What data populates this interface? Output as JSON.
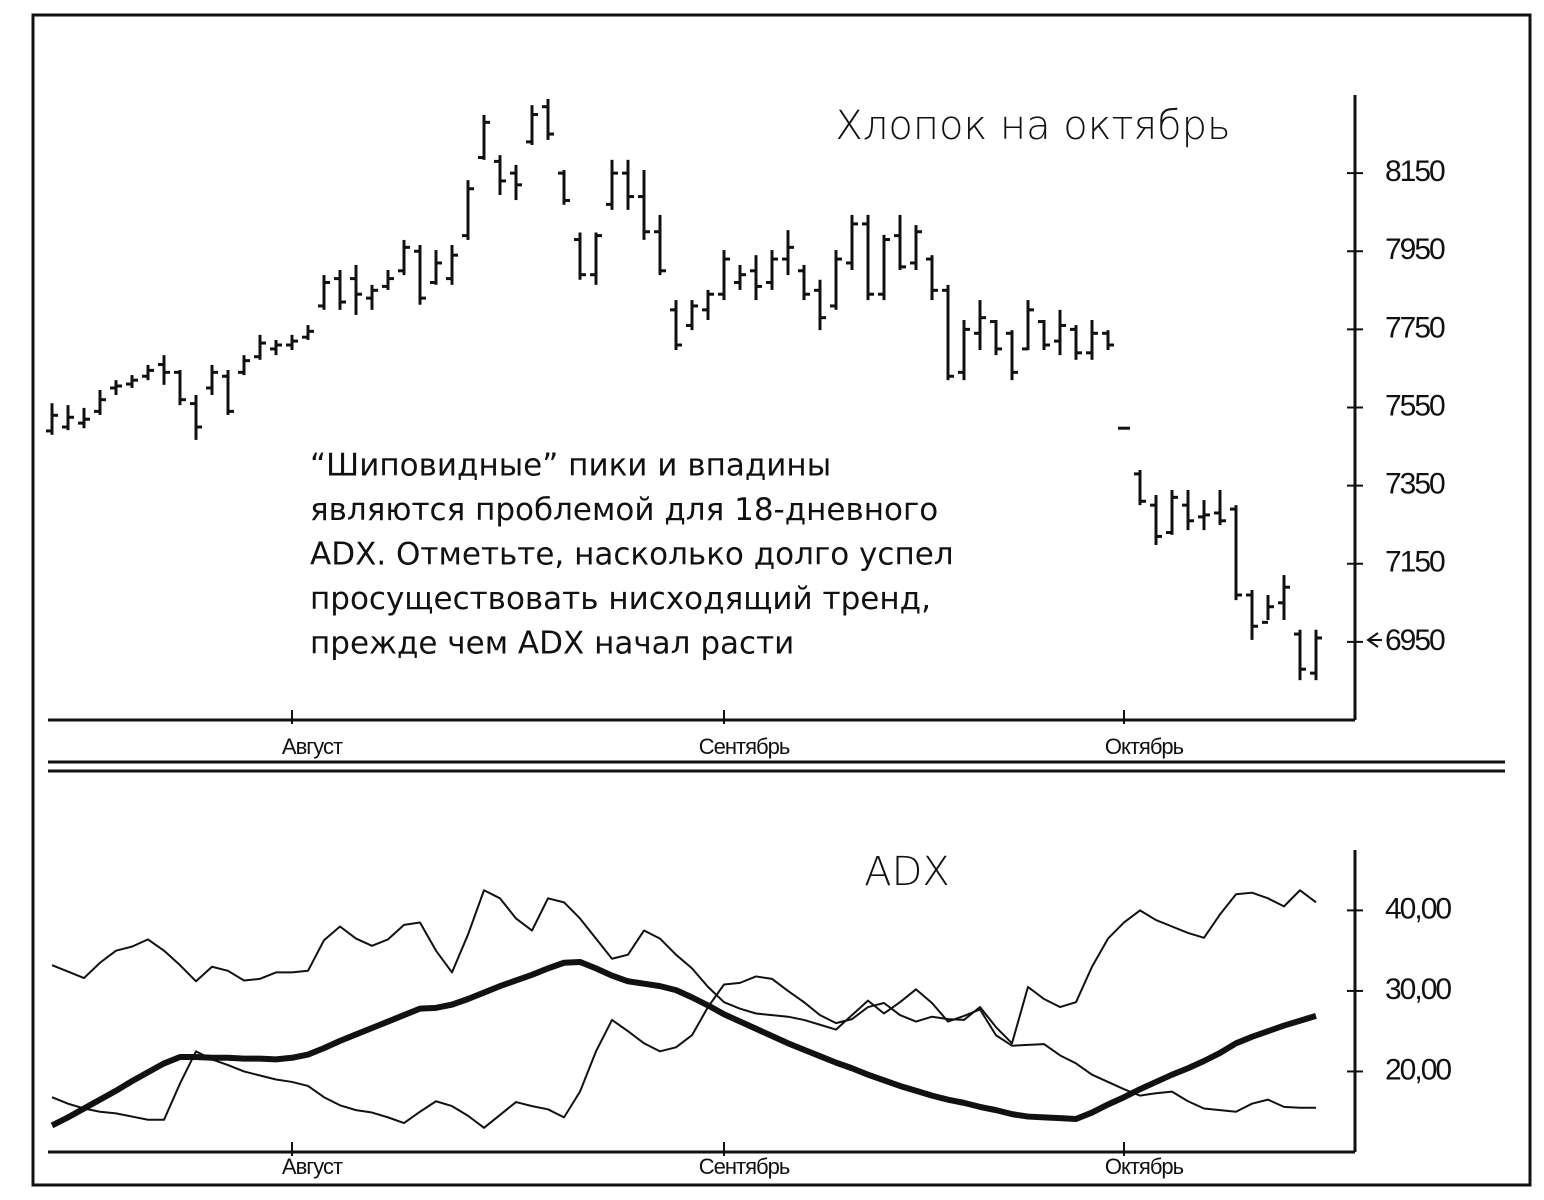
{
  "chart_data": [
    {
      "type": "ohlc",
      "title": "Хлопок на октябрь",
      "annotation": [
        "“Шиповидные” пики и впадины",
        "являются проблемой для 18-дневного",
        "ADX. Отметьте, насколько долго успел",
        "просуществовать нисходящий тренд,",
        "прежде чем ADX начал расти"
      ],
      "categories": [
        null,
        null,
        null,
        null,
        null,
        null,
        null,
        null,
        null,
        null,
        null,
        null,
        null,
        null,
        null,
        "Август",
        null,
        null,
        null,
        null,
        null,
        null,
        null,
        null,
        null,
        null,
        null,
        null,
        null,
        null,
        null,
        null,
        null,
        null,
        null,
        null,
        null,
        null,
        null,
        null,
        null,
        null,
        "Сентябрь",
        null,
        null,
        null,
        null,
        null,
        null,
        null,
        null,
        null,
        null,
        null,
        null,
        null,
        null,
        null,
        null,
        null,
        null,
        null,
        null,
        null,
        null,
        null,
        null,
        "Октябрь",
        null,
        null,
        null,
        null,
        null,
        null,
        null,
        null,
        null,
        null,
        null,
        null
      ],
      "open": [
        7490,
        7500,
        7510,
        7540,
        7600,
        7610,
        7630,
        7660,
        7640,
        7560,
        7600,
        7630,
        7640,
        7680,
        7700,
        7710,
        7730,
        7810,
        7880,
        7880,
        7830,
        7860,
        7900,
        7950,
        7870,
        7880,
        7990,
        8190,
        8180,
        8150,
        8230,
        8320,
        8150,
        7980,
        7890,
        8070,
        8150,
        8090,
        8000,
        7800,
        7760,
        7800,
        7840,
        7870,
        7900,
        7870,
        7930,
        7900,
        7850,
        7810,
        7920,
        8020,
        7840,
        7990,
        7920,
        7930,
        7850,
        7640,
        7740,
        7770,
        7740,
        7700,
        7770,
        7720,
        7750,
        7690,
        7740,
        7497,
        7380,
        7300,
        7230,
        7300,
        7270,
        7280,
        7290,
        7070,
        7000,
        7050,
        6970,
        6870
      ],
      "high": [
        7561,
        7556,
        7549,
        7595,
        7620,
        7633,
        7659,
        7684,
        7646,
        7582,
        7659,
        7646,
        7684,
        7736,
        7723,
        7736,
        7761,
        7889,
        7902,
        7915,
        7864,
        7902,
        7979,
        7966,
        7953,
        7966,
        8132,
        8299,
        8196,
        8171,
        8324,
        8340,
        8158,
        7998,
        7998,
        8184,
        8184,
        8158,
        8043,
        7825,
        7825,
        7851,
        7953,
        7915,
        7940,
        7953,
        8004,
        7915,
        7877,
        7953,
        8043,
        8043,
        7992,
        8043,
        8017,
        7940,
        7864,
        7774,
        7825,
        7774,
        7748,
        7825,
        7774,
        7800,
        7761,
        7774,
        7748,
        7497,
        7390,
        7326,
        7339,
        7339,
        7313,
        7339,
        7300,
        7083,
        7070,
        7121,
        6981,
        6981
      ],
      "low": [
        7480,
        7492,
        7497,
        7531,
        7582,
        7600,
        7620,
        7608,
        7556,
        7467,
        7582,
        7531,
        7633,
        7672,
        7684,
        7697,
        7723,
        7800,
        7800,
        7787,
        7800,
        7851,
        7889,
        7813,
        7864,
        7864,
        7979,
        8184,
        8094,
        8081,
        8222,
        8235,
        8069,
        7877,
        7864,
        8056,
        8056,
        7979,
        7889,
        7697,
        7748,
        7774,
        7825,
        7851,
        7825,
        7851,
        7889,
        7825,
        7748,
        7800,
        7902,
        7825,
        7825,
        7902,
        7902,
        7825,
        7620,
        7620,
        7697,
        7684,
        7620,
        7697,
        7697,
        7684,
        7672,
        7672,
        7697,
        7497,
        7300,
        7198,
        7224,
        7236,
        7236,
        7249,
        7057,
        6955,
        7006,
        7006,
        6852,
        6852
      ],
      "close": [
        7530,
        7525,
        7520,
        7570,
        7605,
        7620,
        7645,
        7640,
        7570,
        7500,
        7640,
        7540,
        7670,
        7715,
        7710,
        7720,
        7745,
        7870,
        7820,
        7840,
        7850,
        7880,
        7960,
        7830,
        7920,
        7940,
        8110,
        8280,
        8130,
        8120,
        8300,
        8250,
        8080,
        7890,
        7990,
        8150,
        8090,
        8000,
        7900,
        7710,
        7810,
        7840,
        7930,
        7890,
        7860,
        7930,
        7960,
        7840,
        7780,
        7930,
        8020,
        7840,
        7980,
        7910,
        8000,
        7850,
        7630,
        7750,
        7780,
        7700,
        7640,
        7800,
        7710,
        7760,
        7690,
        7740,
        7710,
        7497,
        7310,
        7220,
        7320,
        7260,
        7275,
        7260,
        7070,
        6990,
        7040,
        7090,
        6880,
        6960
      ],
      "color": "#111111",
      "ylim": [
        6750,
        8350
      ],
      "yticks": [
        8150,
        7950,
        7750,
        7550,
        7350,
        7150,
        6950
      ]
    },
    {
      "type": "line",
      "title": "ADX",
      "categories": [
        null,
        null,
        null,
        null,
        null,
        null,
        null,
        null,
        null,
        null,
        null,
        null,
        null,
        null,
        null,
        "Август",
        null,
        null,
        null,
        null,
        null,
        null,
        null,
        null,
        null,
        null,
        null,
        null,
        null,
        null,
        null,
        null,
        null,
        null,
        null,
        null,
        null,
        null,
        null,
        null,
        null,
        null,
        "Сентябрь",
        null,
        null,
        null,
        null,
        null,
        null,
        null,
        null,
        null,
        null,
        null,
        null,
        null,
        null,
        null,
        null,
        null,
        null,
        null,
        null,
        null,
        null,
        null,
        null,
        "Октябрь",
        null,
        null,
        null,
        null,
        null,
        null,
        null,
        null,
        null,
        null,
        null,
        null
      ],
      "series": [
        {
          "color": "#111111",
          "width": 6,
          "values": [
            13.3,
            14.3,
            15.4,
            16.5,
            17.6,
            18.8,
            19.9,
            21,
            21.8,
            21.8,
            21.7,
            21.7,
            21.6,
            21.6,
            21.5,
            21.7,
            22.1,
            22.9,
            23.8,
            24.6,
            25.4,
            26.2,
            27,
            27.8,
            27.9,
            28.3,
            29,
            29.8,
            30.6,
            31.3,
            32,
            32.8,
            33.5,
            33.6,
            32.8,
            31.9,
            31.2,
            30.9,
            30.6,
            30.1,
            29.2,
            28.2,
            27.1,
            26.2,
            25.3,
            24.4,
            23.5,
            22.7,
            21.9,
            21.1,
            20.4,
            19.6,
            18.9,
            18.2,
            17.6,
            17,
            16.5,
            16.1,
            15.6,
            15.2,
            14.7,
            14.4,
            14.3,
            14.2,
            14.1,
            14.9,
            15.9,
            16.8,
            17.8,
            18.7,
            19.6,
            20.4,
            21.3,
            22.3,
            23.5,
            24.3,
            25,
            25.7,
            26.3,
            26.9
          ]
        },
        {
          "color": "#111111",
          "width": 2,
          "values": [
            33.2,
            32.4,
            31.6,
            33.5,
            35,
            35.5,
            36.4,
            35,
            33.2,
            31.2,
            33,
            32.5,
            31.3,
            31.5,
            32.3,
            32.3,
            32.5,
            36.3,
            38,
            36.5,
            35.6,
            36.4,
            38.2,
            38.5,
            35,
            32.3,
            37,
            42.5,
            41.5,
            39,
            37.5,
            41.5,
            41,
            39,
            36.5,
            34,
            34.5,
            37.5,
            36.5,
            34.5,
            32.8,
            30.5,
            28.6,
            27.8,
            27.2,
            27,
            26.8,
            26.4,
            25.8,
            25.2,
            27,
            28.8,
            27.2,
            28.6,
            30.2,
            28.5,
            26.2,
            26.9,
            27.7,
            24.5,
            23.2,
            23.3,
            23.4,
            22,
            21,
            19.6,
            18.7,
            17.8,
            17,
            17.3,
            17.5,
            16.3,
            15.4,
            15.2,
            15,
            16,
            16.5,
            15.6,
            15.5,
            15.5
          ]
        },
        {
          "color": "#111111",
          "width": 2,
          "values": [
            16.8,
            16,
            15.4,
            15,
            14.8,
            14.4,
            14,
            14,
            18.5,
            22.5,
            21.5,
            20.8,
            20,
            19.5,
            19,
            18.7,
            18.2,
            16.8,
            15.8,
            15.2,
            14.9,
            14.3,
            13.6,
            15,
            16.3,
            15.7,
            14.5,
            13,
            14.6,
            16.2,
            15.7,
            15.3,
            14.3,
            17.5,
            22.5,
            26.4,
            25,
            23.5,
            22.5,
            23,
            24.5,
            28,
            30.8,
            31,
            31.8,
            31.5,
            30,
            28.6,
            27,
            26,
            26.5,
            28,
            28.5,
            27,
            26.2,
            26.8,
            26.5,
            26.4,
            28,
            25.5,
            23.5,
            30.5,
            29,
            28,
            28.6,
            33,
            36.5,
            38.5,
            40,
            38.8,
            38,
            37.2,
            36.6,
            39.5,
            42,
            42.2,
            41.5,
            40.5,
            42.5,
            41
          ]
        }
      ],
      "ylim": [
        10,
        47.5
      ],
      "yticks": [
        {
          "value": 40,
          "label": "40,00"
        },
        {
          "value": 30,
          "label": "30,00"
        },
        {
          "value": 20,
          "label": "20,00"
        }
      ]
    }
  ]
}
